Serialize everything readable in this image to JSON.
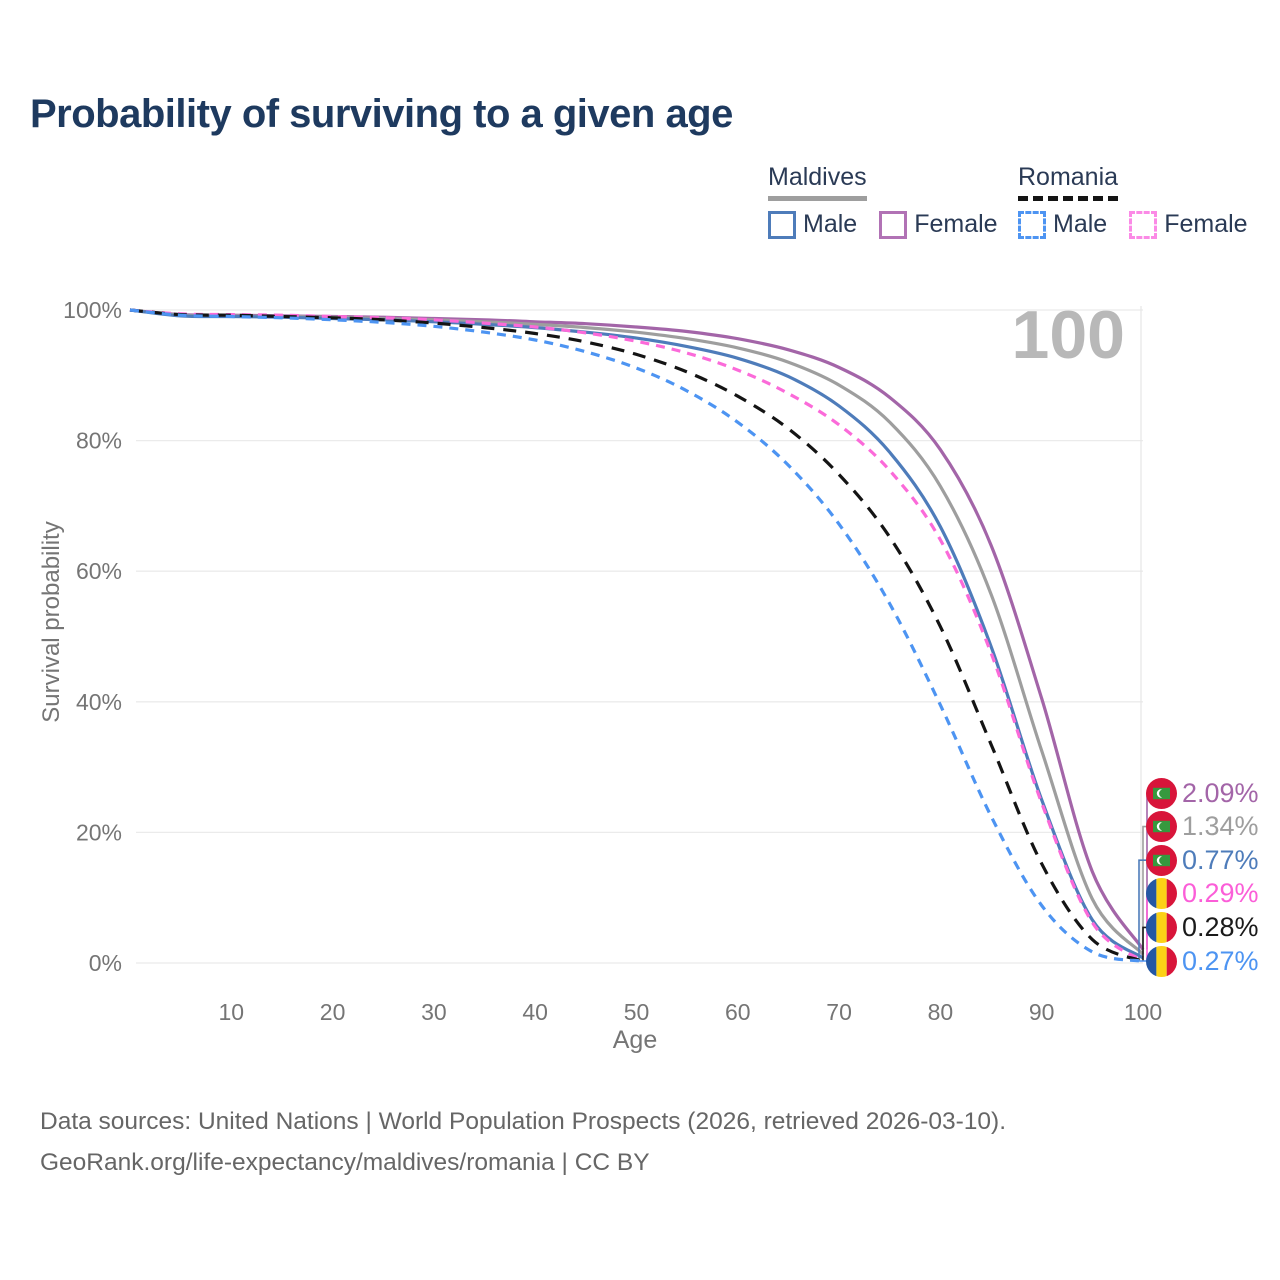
{
  "header": {
    "title": "Probability of surviving to a given age",
    "title_color": "#1e3a5f"
  },
  "legend": {
    "groups": [
      {
        "label": "Maldives",
        "underline_style": "solid",
        "underline_color": "#9e9e9e",
        "items": [
          {
            "label": "Male",
            "swatch_color": "#4e7cba",
            "swatch_style": "solid"
          },
          {
            "label": "Female",
            "swatch_color": "#b172b5",
            "swatch_style": "solid"
          }
        ]
      },
      {
        "label": "Romania",
        "underline_style": "dashed",
        "underline_color": "#141414",
        "items": [
          {
            "label": "Male",
            "swatch_color": "#4d94f2",
            "swatch_style": "dashed"
          },
          {
            "label": "Female",
            "swatch_color": "#fb8ae6",
            "swatch_style": "dashed"
          }
        ]
      }
    ]
  },
  "watermark": {
    "text": "100",
    "color": "#b8b8b8"
  },
  "axes": {
    "y_label": "Survival probability",
    "x_label": "Age",
    "y_ticks": [
      {
        "label": "100%",
        "value": 100
      },
      {
        "label": "80%",
        "value": 80
      },
      {
        "label": "60%",
        "value": 60
      },
      {
        "label": "40%",
        "value": 40
      },
      {
        "label": "20%",
        "value": 20
      },
      {
        "label": "0%",
        "value": 0
      }
    ],
    "x_ticks": [
      {
        "label": "10",
        "value": 10
      },
      {
        "label": "20",
        "value": 20
      },
      {
        "label": "30",
        "value": 30
      },
      {
        "label": "40",
        "value": 40
      },
      {
        "label": "50",
        "value": 50
      },
      {
        "label": "60",
        "value": 60
      },
      {
        "label": "70",
        "value": 70
      },
      {
        "label": "80",
        "value": 80
      },
      {
        "label": "90",
        "value": 90
      },
      {
        "label": "100",
        "value": 100
      }
    ]
  },
  "end_labels": [
    {
      "flag": "maldives",
      "value": "2.09%",
      "color": "#a365a8"
    },
    {
      "flag": "maldives",
      "value": "1.34%",
      "color": "#9e9e9e"
    },
    {
      "flag": "maldives",
      "value": "0.77%",
      "color": "#4e7cba"
    },
    {
      "flag": "romania",
      "value": "0.29%",
      "color": "#fb5ed8"
    },
    {
      "flag": "romania",
      "value": "0.28%",
      "color": "#1a1a1a"
    },
    {
      "flag": "romania",
      "value": "0.27%",
      "color": "#4d94f2"
    }
  ],
  "footer": {
    "lines": [
      "Data sources: United Nations | World Population Prospects (2026, retrieved 2026-03-10).",
      "GeoRank.org/life-expectancy/maldives/romania | CC BY"
    ]
  },
  "chart_data": {
    "type": "line",
    "title": "Probability of surviving to a given age",
    "xlabel": "Age",
    "ylabel": "Survival probability",
    "xlim": [
      0,
      100
    ],
    "ylim": [
      0,
      100
    ],
    "grid": "horizontal",
    "legend_position": "top-right",
    "age_marker": 100,
    "x": [
      0,
      5,
      10,
      15,
      20,
      25,
      30,
      35,
      40,
      45,
      50,
      55,
      60,
      65,
      70,
      75,
      80,
      85,
      90,
      95,
      100
    ],
    "series": [
      {
        "name": "Maldives Female",
        "color": "#a365a8",
        "style": "solid",
        "end_value_pct": 2.09,
        "values": [
          100,
          99.3,
          99.2,
          99.1,
          99.0,
          98.9,
          98.7,
          98.5,
          98.2,
          97.9,
          97.4,
          96.7,
          95.6,
          93.9,
          91.2,
          86.6,
          78.6,
          64.0,
          40.5,
          14.0,
          2.09
        ]
      },
      {
        "name": "Maldives Total",
        "color": "#9e9e9e",
        "style": "solid",
        "end_value_pct": 1.34,
        "values": [
          100,
          99.2,
          99.1,
          99.0,
          98.9,
          98.7,
          98.5,
          98.2,
          97.8,
          97.3,
          96.6,
          95.6,
          94.2,
          92.0,
          88.5,
          82.8,
          73.0,
          56.5,
          32.5,
          9.8,
          1.34
        ]
      },
      {
        "name": "Maldives Male",
        "color": "#4e7cba",
        "style": "solid",
        "end_value_pct": 0.77,
        "values": [
          100,
          99.1,
          99.0,
          98.9,
          98.7,
          98.5,
          98.2,
          97.8,
          97.3,
          96.6,
          95.7,
          94.4,
          92.6,
          89.8,
          85.3,
          78.2,
          66.8,
          48.5,
          25.0,
          6.6,
          0.77
        ]
      },
      {
        "name": "Romania Female",
        "color": "#fb6ad9",
        "style": "dashed",
        "end_value_pct": 0.29,
        "values": [
          100,
          99.4,
          99.3,
          99.2,
          99.0,
          98.8,
          98.5,
          98.0,
          97.4,
          96.5,
          95.2,
          93.4,
          90.8,
          87.2,
          82.4,
          75.4,
          64.8,
          47.5,
          24.5,
          6.2,
          0.29
        ]
      },
      {
        "name": "Romania Total",
        "color": "#141414",
        "style": "dashed",
        "end_value_pct": 0.28,
        "values": [
          100,
          99.3,
          99.2,
          99.0,
          98.8,
          98.5,
          98.0,
          97.3,
          96.4,
          95.1,
          93.2,
          90.5,
          86.8,
          81.8,
          74.8,
          65.2,
          51.5,
          33.5,
          15.2,
          3.6,
          0.28
        ]
      },
      {
        "name": "Romania Male",
        "color": "#4d94f2",
        "style": "dashed",
        "end_value_pct": 0.27,
        "values": [
          100,
          99.2,
          99.0,
          98.8,
          98.5,
          98.1,
          97.5,
          96.6,
          95.4,
          93.6,
          91.1,
          87.6,
          82.8,
          76.2,
          67.2,
          55.0,
          39.5,
          22.5,
          8.8,
          1.7,
          0.27
        ]
      }
    ]
  }
}
